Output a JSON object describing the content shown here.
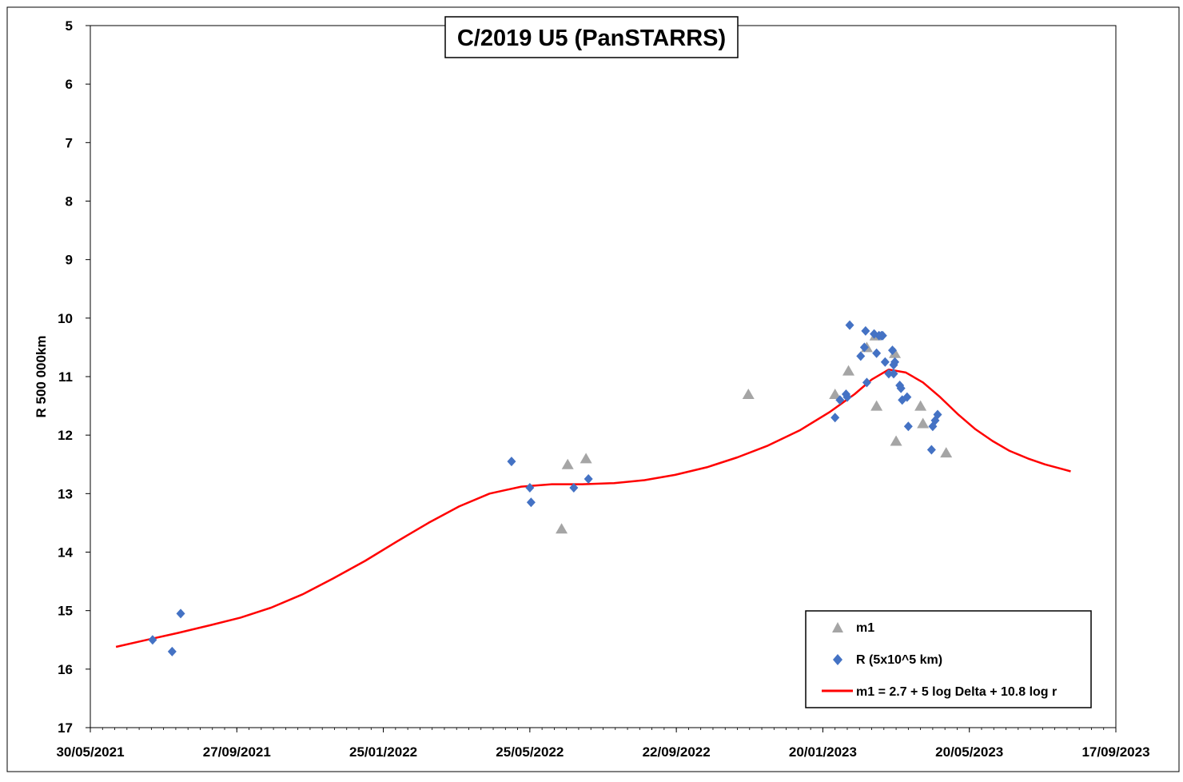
{
  "chart_data": {
    "type": "scatter",
    "title": "C/2019 U5 (PanSTARRS)",
    "xlabel": "",
    "ylabel": "R 500 000km",
    "x_range": [
      "2021-05-30",
      "2023-09-17"
    ],
    "x_ticks": [
      "30/05/2021",
      "27/09/2021",
      "25/01/2022",
      "25/05/2022",
      "22/09/2022",
      "20/01/2023",
      "20/05/2023",
      "17/09/2023"
    ],
    "ylim": [
      5,
      17
    ],
    "y_inverted": true,
    "y_ticks": [
      "5",
      "6",
      "7",
      "8",
      "9",
      "10",
      "11",
      "12",
      "13",
      "14",
      "15",
      "16",
      "17"
    ],
    "grid": false,
    "legend_position": "bottom-right",
    "series": [
      {
        "name": "m1",
        "marker": "triangle",
        "color": "#a5a5a5",
        "points": [
          [
            "2022-06-20",
            13.6
          ],
          [
            "2022-06-25",
            12.5
          ],
          [
            "2022-07-10",
            12.4
          ],
          [
            "2022-11-20",
            11.3
          ],
          [
            "2023-01-30",
            11.3
          ],
          [
            "2023-02-10",
            10.9
          ],
          [
            "2023-02-25",
            10.5
          ],
          [
            "2023-03-04",
            10.3
          ],
          [
            "2023-03-05",
            11.5
          ],
          [
            "2023-03-20",
            10.6
          ],
          [
            "2023-03-21",
            12.1
          ],
          [
            "2023-04-10",
            11.5
          ],
          [
            "2023-04-12",
            11.8
          ],
          [
            "2023-05-01",
            12.3
          ]
        ]
      },
      {
        "name": "R (5x10^5 km)",
        "marker": "diamond",
        "color": "#4472c4",
        "points": [
          [
            "2021-07-20",
            15.5
          ],
          [
            "2021-08-05",
            15.7
          ],
          [
            "2021-08-12",
            15.05
          ],
          [
            "2022-05-10",
            12.45
          ],
          [
            "2022-05-25",
            12.9
          ],
          [
            "2022-05-26",
            13.15
          ],
          [
            "2022-06-30",
            12.9
          ],
          [
            "2022-07-12",
            12.75
          ],
          [
            "2023-01-30",
            11.7
          ],
          [
            "2023-02-03",
            11.4
          ],
          [
            "2023-02-08",
            11.3
          ],
          [
            "2023-02-09",
            11.35
          ],
          [
            "2023-02-11",
            10.12
          ],
          [
            "2023-02-20",
            10.65
          ],
          [
            "2023-02-23",
            10.5
          ],
          [
            "2023-02-24",
            10.22
          ],
          [
            "2023-02-25",
            11.1
          ],
          [
            "2023-03-03",
            10.27
          ],
          [
            "2023-03-05",
            10.6
          ],
          [
            "2023-03-07",
            10.3
          ],
          [
            "2023-03-09",
            10.3
          ],
          [
            "2023-03-10",
            10.3
          ],
          [
            "2023-03-12",
            10.75
          ],
          [
            "2023-03-15",
            10.95
          ],
          [
            "2023-03-18",
            10.55
          ],
          [
            "2023-03-19",
            10.8
          ],
          [
            "2023-03-19",
            10.95
          ],
          [
            "2023-03-20",
            10.75
          ],
          [
            "2023-03-24",
            11.15
          ],
          [
            "2023-03-25",
            11.2
          ],
          [
            "2023-03-26",
            11.4
          ],
          [
            "2023-03-30",
            11.35
          ],
          [
            "2023-03-31",
            11.85
          ],
          [
            "2023-04-19",
            12.25
          ],
          [
            "2023-04-20",
            11.85
          ],
          [
            "2023-04-22",
            11.75
          ],
          [
            "2023-04-24",
            11.65
          ]
        ]
      },
      {
        "name": "m1 = 2.7 + 5 log Delta + 10.8 log r",
        "marker": "line",
        "color": "#ff0000",
        "points": [
          [
            "2021-06-20",
            15.62
          ],
          [
            "2021-07-15",
            15.5
          ],
          [
            "2021-08-10",
            15.38
          ],
          [
            "2021-09-05",
            15.25
          ],
          [
            "2021-09-30",
            15.12
          ],
          [
            "2021-10-25",
            14.95
          ],
          [
            "2021-11-20",
            14.72
          ],
          [
            "2021-12-15",
            14.45
          ],
          [
            "2022-01-10",
            14.15
          ],
          [
            "2022-02-05",
            13.82
          ],
          [
            "2022-03-03",
            13.5
          ],
          [
            "2022-03-28",
            13.22
          ],
          [
            "2022-04-22",
            13.0
          ],
          [
            "2022-05-18",
            12.88
          ],
          [
            "2022-06-12",
            12.84
          ],
          [
            "2022-07-07",
            12.84
          ],
          [
            "2022-08-02",
            12.82
          ],
          [
            "2022-08-27",
            12.77
          ],
          [
            "2022-09-21",
            12.68
          ],
          [
            "2022-10-17",
            12.55
          ],
          [
            "2022-11-11",
            12.38
          ],
          [
            "2022-12-06",
            12.18
          ],
          [
            "2023-01-01",
            11.92
          ],
          [
            "2023-01-26",
            11.6
          ],
          [
            "2023-02-15",
            11.3
          ],
          [
            "2023-03-01",
            11.05
          ],
          [
            "2023-03-15",
            10.88
          ],
          [
            "2023-03-29",
            10.93
          ],
          [
            "2023-04-12",
            11.1
          ],
          [
            "2023-04-26",
            11.35
          ],
          [
            "2023-05-11",
            11.65
          ],
          [
            "2023-05-25",
            11.9
          ],
          [
            "2023-06-08",
            12.1
          ],
          [
            "2023-06-22",
            12.27
          ],
          [
            "2023-07-07",
            12.4
          ],
          [
            "2023-07-21",
            12.5
          ],
          [
            "2023-08-04",
            12.58
          ],
          [
            "2023-08-11",
            12.62
          ]
        ]
      }
    ]
  }
}
